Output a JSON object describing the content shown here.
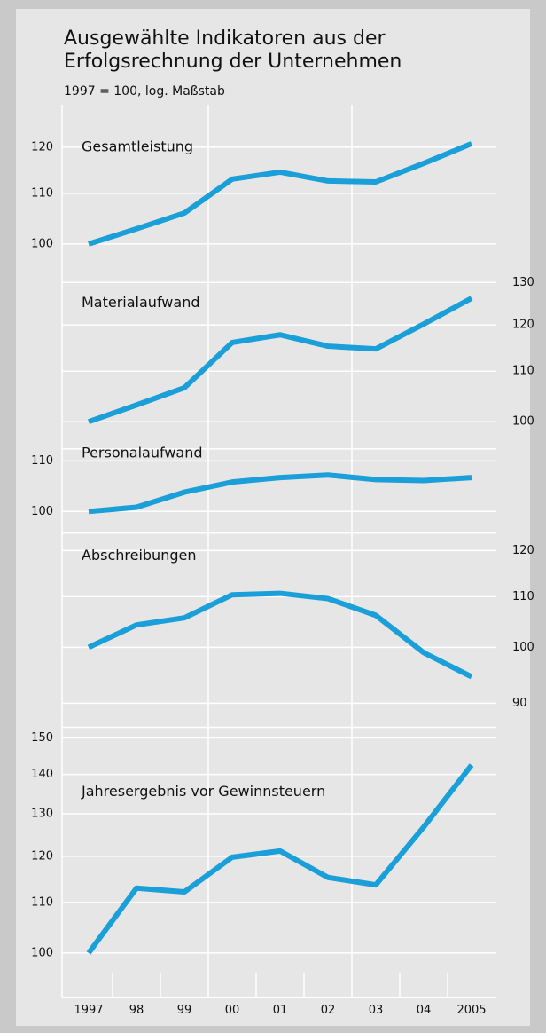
{
  "chart_data": {
    "type": "line",
    "title": [
      "Ausgewählte Indikatoren aus der",
      "Erfolgsrechnung der Unternehmen"
    ],
    "subtitle": "1997 = 100, log. Maßstab",
    "log_scale": true,
    "grid": true,
    "categories": [
      "1997",
      "98",
      "99",
      "00",
      "01",
      "02",
      "03",
      "04",
      "2005"
    ],
    "series": [
      {
        "name": "Gesamtleistung",
        "color": "#1a9fd9",
        "axis_side": "left",
        "values": [
          100,
          102.9,
          106.0,
          113.0,
          114.5,
          112.6,
          112.4,
          116.4,
          120.8
        ],
        "ylim": [
          93,
          130
        ],
        "yticks": [
          100,
          110,
          120
        ]
      },
      {
        "name": "Materialaufwand",
        "color": "#1a9fd9",
        "axis_side": "right",
        "values": [
          100,
          103.2,
          106.6,
          116.1,
          117.8,
          115.3,
          114.7,
          120.2,
          126.2
        ],
        "ylim": [
          95,
          130
        ],
        "yticks": [
          100,
          110,
          120,
          130
        ]
      },
      {
        "name": "Personalaufwand",
        "color": "#1a9fd9",
        "axis_side": "left",
        "values": [
          100,
          100.8,
          103.7,
          105.7,
          106.6,
          107.1,
          106.2,
          106.0,
          106.6
        ],
        "ylim": [
          96,
          112.5
        ],
        "yticks": [
          100,
          110
        ]
      },
      {
        "name": "Abschreibungen",
        "color": "#1a9fd9",
        "axis_side": "right",
        "values": [
          100,
          104.3,
          105.7,
          110.4,
          110.7,
          109.6,
          106.2,
          99.0,
          94.6
        ],
        "ylim": [
          86,
          124
        ],
        "yticks": [
          90,
          100,
          110,
          120
        ]
      },
      {
        "name": "Jahresergebnis vor Gewinnsteuern",
        "color": "#1a9fd9",
        "axis_side": "left",
        "values": [
          100,
          113.0,
          112.2,
          119.8,
          121.2,
          115.3,
          113.7,
          126.8,
          142.5
        ],
        "ylim": [
          92,
          153
        ],
        "yticks": [
          100,
          110,
          120,
          130,
          140,
          150
        ]
      }
    ]
  }
}
